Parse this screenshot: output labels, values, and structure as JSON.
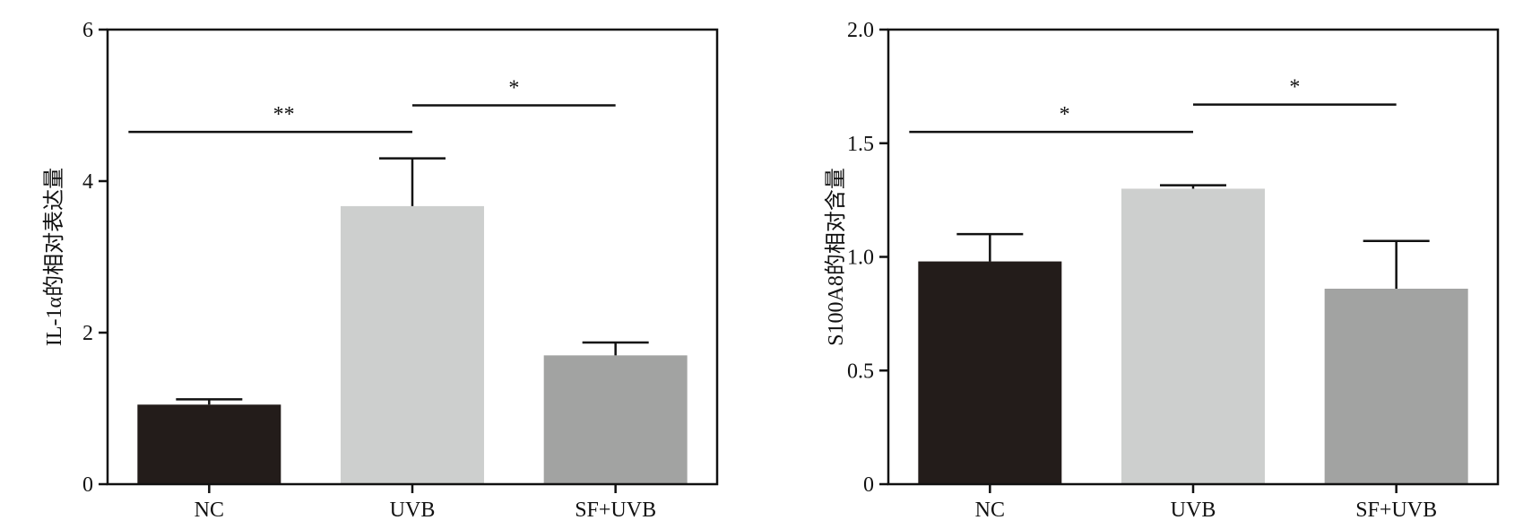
{
  "chart_data": [
    {
      "type": "bar",
      "title": "",
      "xlabel": "",
      "ylabel": "IL-1α的相对表达量",
      "ylim": [
        0,
        6
      ],
      "yticks": [
        0,
        2,
        4,
        6
      ],
      "yticklabels": [
        "0",
        "2",
        "4",
        "6"
      ],
      "categories": [
        "NC",
        "UVB",
        "SF+UVB"
      ],
      "values": [
        1.05,
        3.67,
        1.7
      ],
      "errors": [
        0.07,
        0.63,
        0.17
      ],
      "bar_colors": [
        "#231c1a",
        "#cdcfce",
        "#a2a3a2"
      ],
      "grid": false,
      "significance": [
        {
          "from": 0,
          "to": 1,
          "label": "**",
          "level": 4.65
        },
        {
          "from": 1,
          "to": 2,
          "label": "*",
          "level": 5.0
        }
      ]
    },
    {
      "type": "bar",
      "title": "",
      "xlabel": "",
      "ylabel": "S100A8的相对含量",
      "ylim": [
        0,
        2.0
      ],
      "yticks": [
        0,
        0.5,
        1.0,
        1.5,
        2.0
      ],
      "yticklabels": [
        "0",
        "0.5",
        "1.0",
        "1.5",
        "2.0"
      ],
      "categories": [
        "NC",
        "UVB",
        "SF+UVB"
      ],
      "values": [
        0.98,
        1.3,
        0.86
      ],
      "errors": [
        0.12,
        0.015,
        0.21
      ],
      "bar_colors": [
        "#231c1a",
        "#cdcfce",
        "#a2a3a2"
      ],
      "grid": false,
      "significance": [
        {
          "from": 0,
          "to": 1,
          "label": "*",
          "level": 1.55
        },
        {
          "from": 1,
          "to": 2,
          "label": "*",
          "level": 1.67
        }
      ]
    }
  ]
}
